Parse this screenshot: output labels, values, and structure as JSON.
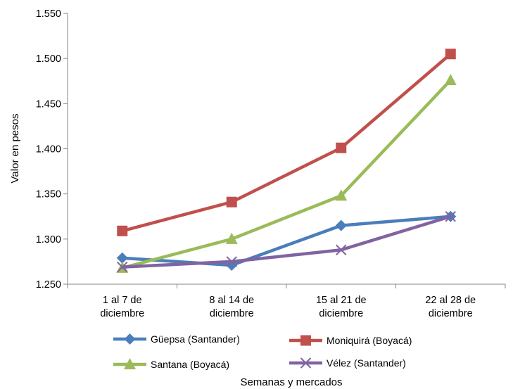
{
  "chart_data": {
    "type": "line",
    "categories": [
      [
        "1 al 7 de",
        "diciembre"
      ],
      [
        "8 al 14 de",
        "diciembre"
      ],
      [
        "15 al 21 de",
        "diciembre"
      ],
      [
        "22 al 28 de",
        "diciembre"
      ]
    ],
    "xlabel": "Semanas y mercados",
    "ylabel": "Valor en pesos",
    "ylim": [
      1250,
      1550
    ],
    "ytick_values": [
      1250,
      1300,
      1350,
      1400,
      1450,
      1500,
      1550
    ],
    "ytick_labels": [
      "1.250",
      "1.300",
      "1.350",
      "1.400",
      "1.450",
      "1.500",
      "1.550"
    ],
    "grid": false,
    "legend_position": "bottom",
    "series": [
      {
        "name": "Güepsa (Santander)",
        "values": [
          1279,
          1271,
          1315,
          1325
        ],
        "color": "#4a7ebb",
        "marker": "diamond"
      },
      {
        "name": "Moniquirá (Boyacá)",
        "values": [
          1309,
          1341,
          1401,
          1505
        ],
        "color": "#c0504d",
        "marker": "square"
      },
      {
        "name": "Santana (Boyacá)",
        "values": [
          1268,
          1300,
          1348,
          1476
        ],
        "color": "#9bbb59",
        "marker": "triangle"
      },
      {
        "name": "Vélez (Santander)",
        "values": [
          1269,
          1275,
          1288,
          1325
        ],
        "color": "#8064a2",
        "marker": "x"
      }
    ]
  }
}
